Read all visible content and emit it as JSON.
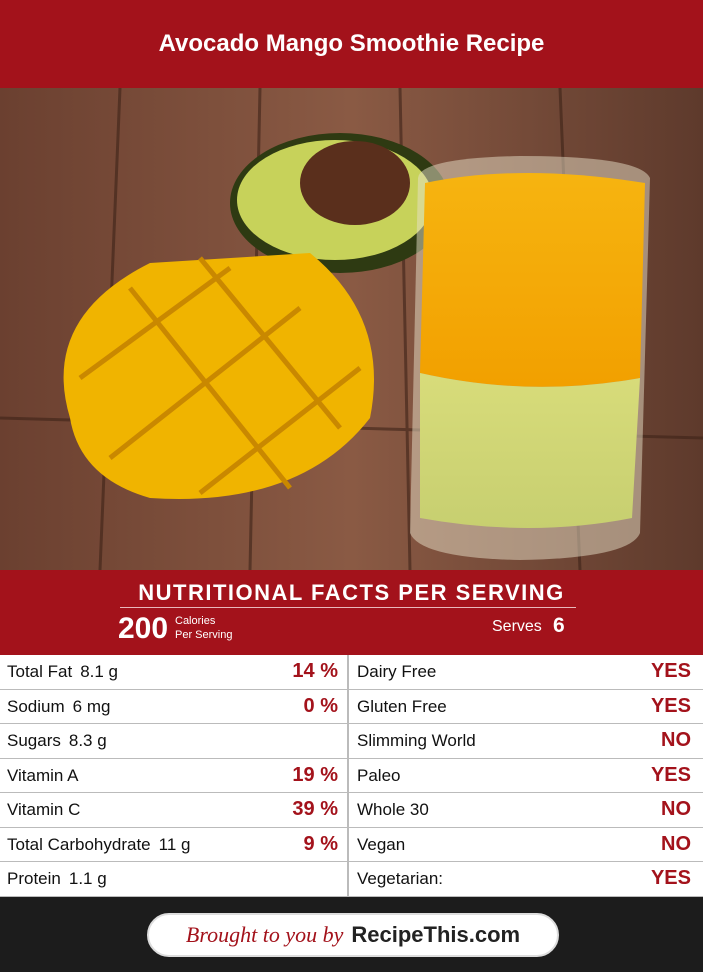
{
  "header": {
    "title": "Avocado Mango Smoothie Recipe"
  },
  "nutrition": {
    "heading": "NUTRITIONAL FACTS PER SERVING",
    "calories": "200",
    "calories_label": "Calories",
    "calories_sublabel": "Per Serving",
    "serves_label": "Serves",
    "serves": "6",
    "left_rows": [
      {
        "name": "Total Fat",
        "amount": "8.1 g",
        "percent": "14 %"
      },
      {
        "name": "Sodium",
        "amount": "6 mg",
        "percent": "0 %"
      },
      {
        "name": "Sugars",
        "amount": "8.3 g"
      },
      {
        "name": "Vitamin A",
        "percent": "19 %"
      },
      {
        "name": "Vitamin C",
        "percent": "39 %"
      },
      {
        "name": "Total Carbohydrate",
        "amount": "11 g",
        "percent": "9 %"
      },
      {
        "name": "Protein",
        "amount": "1.1 g"
      }
    ],
    "right_rows": [
      {
        "name": "Dairy Free",
        "answer": "YES"
      },
      {
        "name": "Gluten Free",
        "answer": "YES"
      },
      {
        "name": "Slimming World",
        "answer": "NO"
      },
      {
        "name": "Paleo",
        "answer": "YES"
      },
      {
        "name": "Whole 30",
        "answer": "NO"
      },
      {
        "name": "Vegan",
        "answer": "NO"
      },
      {
        "name": "Vegetarian:",
        "answer": "YES"
      }
    ]
  },
  "footer": {
    "prefix": "Brought to you by",
    "brand": "RecipeThis.com"
  }
}
